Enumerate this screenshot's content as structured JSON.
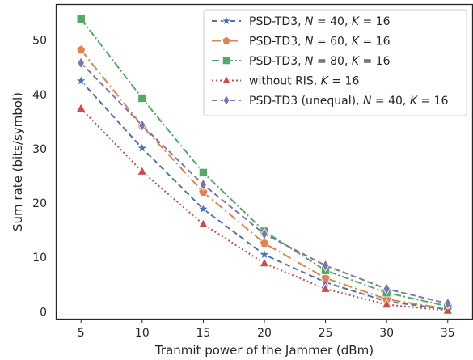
{
  "chart_data": {
    "type": "line",
    "xlabel": "Tranmit power of the Jammer (dBm)",
    "ylabel": "Sum rate (bits/symbol)",
    "x": [
      5,
      10,
      15,
      20,
      25,
      30,
      35
    ],
    "xticks": [
      "5",
      "10",
      "15",
      "20",
      "25",
      "30",
      "35"
    ],
    "yticks": [
      "0",
      "10",
      "20",
      "30",
      "40",
      "50"
    ],
    "xlim": [
      3,
      37
    ],
    "ylim": [
      -1.3,
      56.5
    ],
    "grid": false,
    "legend_position": "top-right",
    "series": [
      {
        "name": "PSD-TD3, N = 40, K = 16",
        "legend_parts": [
          "PSD-TD3, ",
          "N",
          " = 40, ",
          "K",
          " = 16"
        ],
        "values": [
          42.5,
          30.1,
          18.9,
          10.5,
          5.4,
          1.9,
          0.4
        ],
        "color": "#4c72b0",
        "marker": "star",
        "dash": "7,4"
      },
      {
        "name": "PSD-TD3, N = 60, K = 16",
        "legend_parts": [
          "PSD-TD3, ",
          "N",
          " = 60, ",
          "K",
          " = 16"
        ],
        "values": [
          48.2,
          34.2,
          22.0,
          12.6,
          6.2,
          2.3,
          0.5
        ],
        "color": "#dd8452",
        "marker": "pentagon",
        "dash": "11,4,2,4"
      },
      {
        "name": "PSD-TD3, N = 80, K = 16",
        "legend_parts": [
          "PSD-TD3, ",
          "N",
          " = 80, ",
          "K",
          " = 16"
        ],
        "values": [
          53.9,
          39.3,
          25.6,
          14.8,
          7.6,
          3.5,
          1.0
        ],
        "color": "#55a868",
        "marker": "square",
        "dash": "9,3,2,3"
      },
      {
        "name": "without RIS, K = 16",
        "legend_parts": [
          "without RIS, ",
          "K",
          " = 16"
        ],
        "values": [
          37.4,
          25.8,
          16.1,
          8.9,
          4.2,
          1.3,
          0.2
        ],
        "color": "#c44e52",
        "marker": "triangle",
        "dash": "2,3"
      },
      {
        "name": "PSD-TD3 (unequal), N = 40, K = 16",
        "legend_parts": [
          "PSD-TD3 (unequal), ",
          "N",
          " = 40, ",
          "K",
          " = 16"
        ],
        "values": [
          45.8,
          34.3,
          23.4,
          14.3,
          8.5,
          4.2,
          1.5
        ],
        "color": "#8172b3",
        "marker": "diamond",
        "dash": "7,4"
      }
    ]
  }
}
